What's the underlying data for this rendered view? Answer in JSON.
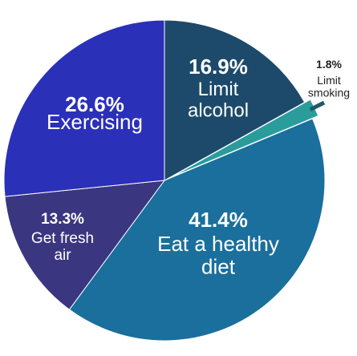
{
  "chart_data": {
    "type": "pie",
    "categories": [
      "Limit alcohol",
      "Limit smoking",
      "Eat a healthy diet",
      "Get fresh air",
      "Exercising"
    ],
    "values": [
      16.9,
      1.8,
      41.4,
      13.3,
      26.6
    ],
    "value_labels": [
      "16.9%",
      "1.8%",
      "41.4%",
      "13.3%",
      "26.6%"
    ],
    "colors": [
      "#1d4a6a",
      "#2a9c9c",
      "#1a6f9c",
      "#3b3680",
      "#2b30b8"
    ]
  }
}
